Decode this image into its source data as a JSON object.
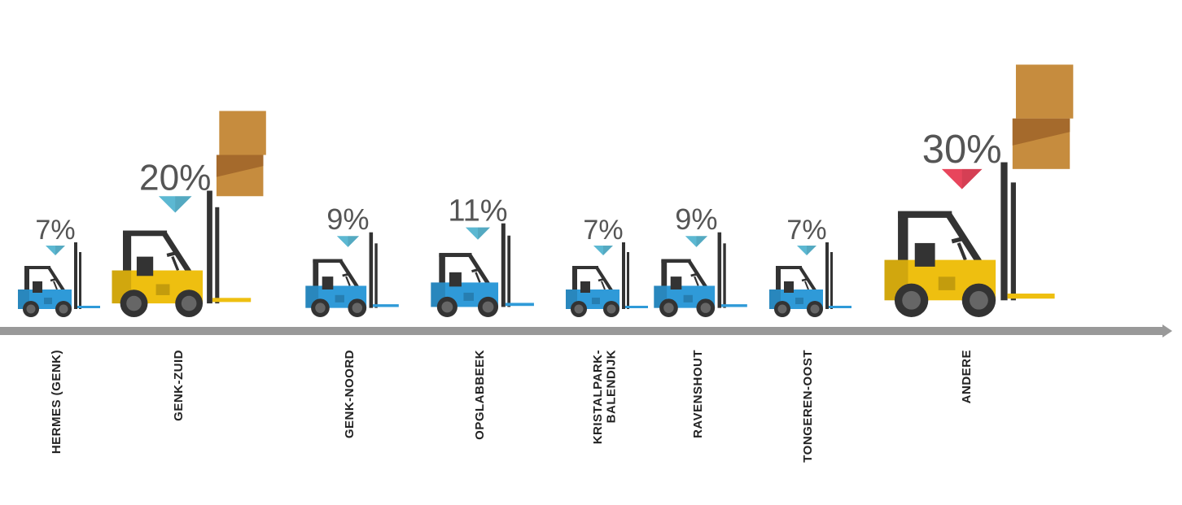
{
  "chart_data": {
    "type": "pictogram",
    "categories": [
      "HERMES (GENK)",
      "GENK-ZUID",
      "GENK-NOORD",
      "OPGLABBEEK",
      "KRISTALPARK-BALENDIJK",
      "RAVENSHOUT",
      "TONGEREN-OOST",
      "ANDERE"
    ],
    "values": [
      7,
      20,
      9,
      11,
      7,
      9,
      7,
      30
    ],
    "value_labels": [
      "7%",
      "20%",
      "9%",
      "11%",
      "7%",
      "9%",
      "7%",
      "30%"
    ],
    "colors": [
      "#2f9ad8",
      "#eebf10",
      "#2f9ad8",
      "#2f9ad8",
      "#2f9ad8",
      "#2f9ad8",
      "#2f9ad8",
      "#eebf10"
    ],
    "marker_colors": [
      "#5cb8d2",
      "#5cb8d2",
      "#5cb8d2",
      "#5cb8d2",
      "#5cb8d2",
      "#5cb8d2",
      "#5cb8d2",
      "#e8455c"
    ]
  }
}
